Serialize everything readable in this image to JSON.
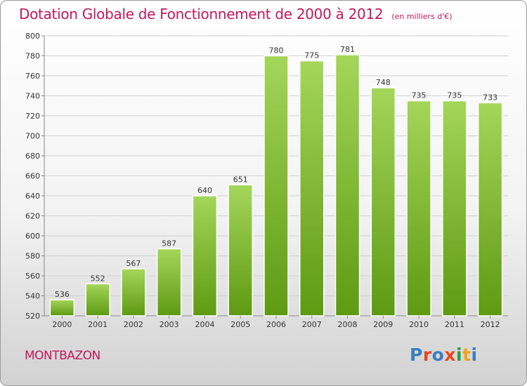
{
  "header": {
    "title": "Dotation Globale de Fonctionnement de 2000 à 2012",
    "unit_note": "(en milliers d'€)"
  },
  "footer": {
    "town": "MONTBAZON"
  },
  "logo": {
    "text": "Proxiti",
    "colors": [
      "#3a7fc1",
      "#e8471f",
      "#3a7fc1",
      "#e8471f",
      "#2a9d3a",
      "#f2a21b",
      "#3a7fc1"
    ]
  },
  "colors": {
    "title": "#c2185b",
    "bar_top": "#a4d65a",
    "bar_bottom": "#5e9a12",
    "grid": "#d0d0d0",
    "axis": "#888888",
    "text": "#333333"
  },
  "chart_data": {
    "type": "bar",
    "title": "Dotation Globale de Fonctionnement de 2000 à 2012",
    "subtitle": "(en milliers d'€)",
    "xlabel": "",
    "ylabel": "",
    "categories": [
      "2000",
      "2001",
      "2002",
      "2003",
      "2004",
      "2005",
      "2006",
      "2007",
      "2008",
      "2009",
      "2010",
      "2011",
      "2012"
    ],
    "values": [
      536,
      552,
      567,
      587,
      640,
      651,
      780,
      775,
      781,
      748,
      735,
      735,
      733
    ],
    "ylim": [
      520,
      800
    ],
    "yticks": [
      520,
      540,
      560,
      580,
      600,
      620,
      640,
      660,
      680,
      700,
      720,
      740,
      760,
      780,
      800
    ],
    "grid": true,
    "data_labels": true
  }
}
